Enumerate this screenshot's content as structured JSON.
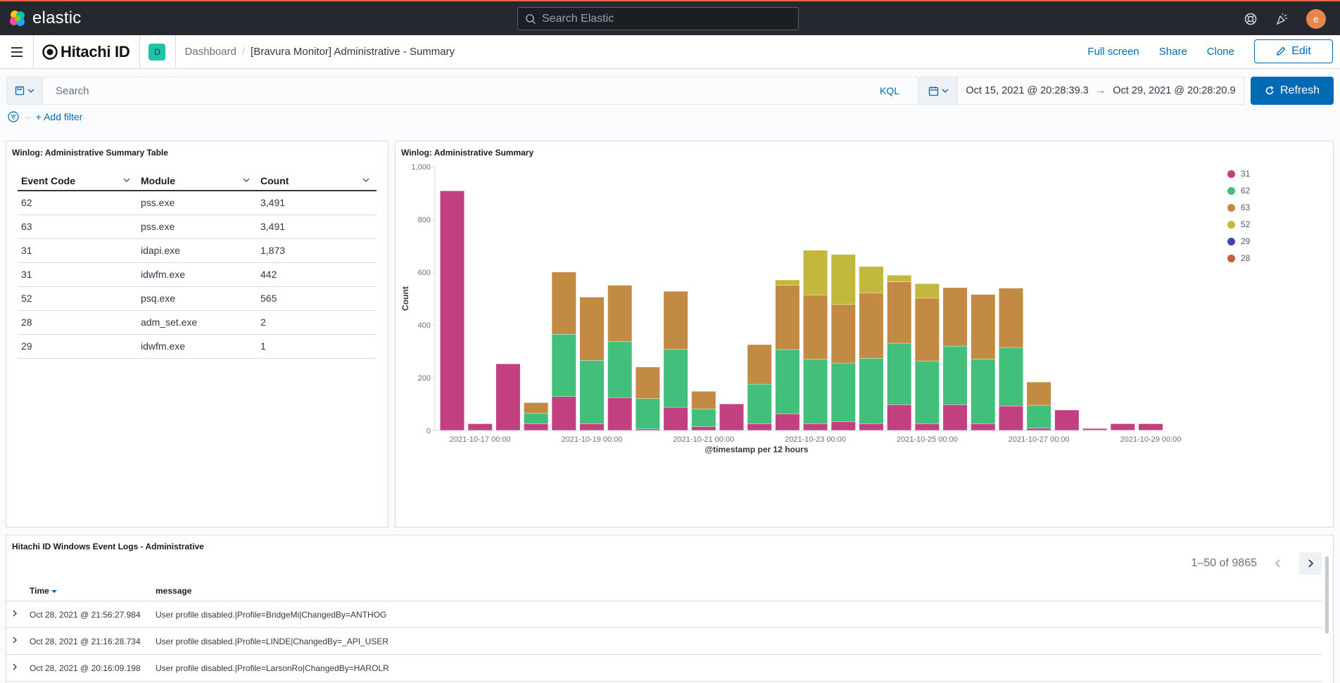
{
  "header": {
    "brand": "elastic",
    "search_placeholder": "Search Elastic",
    "avatar_initial": "e"
  },
  "subheader": {
    "org_brand": "Hitachi ID",
    "space_initial": "D",
    "breadcrumb": {
      "parent": "Dashboard",
      "current": "[Bravura Monitor] Administrative - Summary"
    },
    "actions": {
      "full_screen": "Full screen",
      "share": "Share",
      "clone": "Clone",
      "edit": "Edit"
    }
  },
  "query": {
    "placeholder": "Search",
    "language": "KQL",
    "start": "Oct 15, 2021 @ 20:28:39.3",
    "arrow": "→",
    "end": "Oct 29, 2021 @ 20:28:20.9",
    "refresh": "Refresh",
    "add_filter": "+ Add filter"
  },
  "table_panel": {
    "title": "Winlog: Administrative Summary Table",
    "columns": [
      "Event Code",
      "Module",
      "Count"
    ],
    "rows": [
      [
        "62",
        "pss.exe",
        "3,491"
      ],
      [
        "63",
        "pss.exe",
        "3,491"
      ],
      [
        "31",
        "idapi.exe",
        "1,873"
      ],
      [
        "31",
        "idwfm.exe",
        "442"
      ],
      [
        "52",
        "psq.exe",
        "565"
      ],
      [
        "28",
        "adm_set.exe",
        "2"
      ],
      [
        "29",
        "idwfm.exe",
        "1"
      ]
    ]
  },
  "chart_panel": {
    "title": "Winlog: Administrative Summary"
  },
  "chart_data": {
    "type": "bar",
    "stacked": true,
    "xlabel": "@timestamp per 12 hours",
    "ylabel": "Count",
    "ylim": [
      0,
      1000
    ],
    "yticks": [
      "0",
      "200",
      "400",
      "600",
      "800",
      "1,000"
    ],
    "xtick_labels": [
      "2021-10-17 00:00",
      "2021-10-19 00:00",
      "2021-10-21 00:00",
      "2021-10-23 00:00",
      "2021-10-25 00:00",
      "2021-10-27 00:00",
      "2021-10-29 00:00"
    ],
    "legend_position": "top-right",
    "categories": [
      "2021-10-16 12:00",
      "2021-10-17 00:00",
      "2021-10-17 12:00",
      "2021-10-18 00:00",
      "2021-10-18 12:00",
      "2021-10-19 00:00",
      "2021-10-19 12:00",
      "2021-10-20 00:00",
      "2021-10-20 12:00",
      "2021-10-21 00:00",
      "2021-10-21 12:00",
      "2021-10-22 00:00",
      "2021-10-22 12:00",
      "2021-10-23 00:00",
      "2021-10-23 12:00",
      "2021-10-24 00:00",
      "2021-10-24 12:00",
      "2021-10-25 00:00",
      "2021-10-25 12:00",
      "2021-10-26 00:00",
      "2021-10-26 12:00",
      "2021-10-27 00:00",
      "2021-10-27 12:00",
      "2021-10-28 00:00",
      "2021-10-28 12:00",
      "2021-10-29 00:00",
      "2021-10-29 12:00"
    ],
    "series": [
      {
        "name": "31",
        "color": "#c2407f",
        "values": [
          908,
          25,
          252,
          25,
          128,
          25,
          124,
          5,
          87,
          14,
          100,
          25,
          62,
          25,
          33,
          25,
          97,
          25,
          97,
          25,
          92,
          8,
          77,
          7,
          25,
          25,
          0
        ]
      },
      {
        "name": "62",
        "color": "#41bf7b",
        "values": [
          0,
          0,
          0,
          40,
          236,
          240,
          213,
          115,
          220,
          67,
          0,
          150,
          244,
          244,
          222,
          248,
          233,
          238,
          222,
          245,
          222,
          87,
          0,
          0,
          0,
          0,
          0
        ]
      },
      {
        "name": "63",
        "color": "#c28a42",
        "values": [
          0,
          0,
          0,
          40,
          236,
          240,
          213,
          120,
          220,
          67,
          0,
          150,
          244,
          244,
          222,
          248,
          233,
          238,
          222,
          245,
          225,
          88,
          0,
          0,
          0,
          0,
          0
        ]
      },
      {
        "name": "52",
        "color": "#c3b83e",
        "values": [
          0,
          0,
          0,
          0,
          0,
          0,
          0,
          0,
          0,
          0,
          0,
          0,
          20,
          170,
          190,
          100,
          25,
          55,
          0,
          0,
          0,
          0,
          0,
          0,
          0,
          0,
          0
        ]
      },
      {
        "name": "29",
        "color": "#4243b8",
        "values": [
          0,
          0,
          0,
          0,
          0,
          0,
          0,
          0,
          0,
          0,
          0,
          0,
          0,
          0,
          0,
          0,
          0,
          0,
          0,
          0,
          0,
          0,
          0,
          0,
          0,
          0,
          0
        ]
      },
      {
        "name": "28",
        "color": "#c85f3c",
        "values": [
          0,
          0,
          0,
          0,
          0,
          0,
          0,
          0,
          0,
          0,
          0,
          0,
          0,
          0,
          0,
          0,
          0,
          0,
          0,
          0,
          0,
          0,
          0,
          0,
          0,
          0,
          0
        ]
      }
    ]
  },
  "logs_panel": {
    "title": "Hitachi ID Windows Event Logs - Administrative",
    "pagination": "1–50 of 9865",
    "columns": {
      "time": "Time",
      "message": "message"
    },
    "rows": [
      {
        "time": "Oct 28, 2021 @ 21:56:27.984",
        "message": "User profile disabled.|Profile=BridgeMi|ChangedBy=ANTHOG"
      },
      {
        "time": "Oct 28, 2021 @ 21:16:28.734",
        "message": "User profile disabled.|Profile=LINDE|ChangedBy=_API_USER"
      },
      {
        "time": "Oct 28, 2021 @ 20:16:09.198",
        "message": "User profile disabled.|Profile=LarsonRo|ChangedBy=HAROLR"
      }
    ]
  }
}
